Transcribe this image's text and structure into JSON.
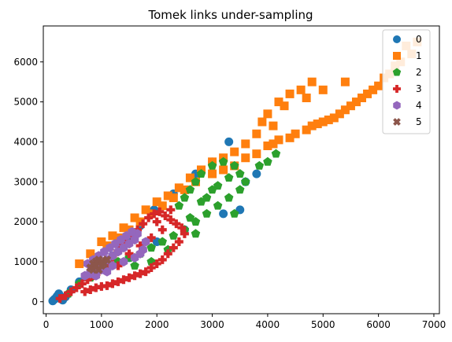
{
  "chart_data": {
    "type": "scatter",
    "title": "Tomek links under-sampling",
    "xlabel": "",
    "ylabel": "",
    "xlim": [
      -50,
      7100
    ],
    "ylim": [
      -300,
      6900
    ],
    "x_ticks": [
      0,
      1000,
      2000,
      3000,
      4000,
      5000,
      6000,
      7000
    ],
    "y_ticks": [
      0,
      1000,
      2000,
      3000,
      4000,
      5000,
      6000
    ],
    "grid": false,
    "legend_position": "top-right",
    "series": [
      {
        "name": "0",
        "color": "#1f77b4",
        "marker": "circle",
        "points": [
          [
            120,
            20
          ],
          [
            150,
            60
          ],
          [
            180,
            100
          ],
          [
            200,
            140
          ],
          [
            230,
            200
          ],
          [
            260,
            80
          ],
          [
            300,
            40
          ],
          [
            350,
            120
          ],
          [
            450,
            300
          ],
          [
            600,
            500
          ],
          [
            800,
            700
          ],
          [
            1000,
            900
          ],
          [
            1200,
            1150
          ],
          [
            1450,
            1600
          ],
          [
            1700,
            1900
          ],
          [
            1950,
            2300
          ],
          [
            2300,
            2700
          ],
          [
            2700,
            3200
          ],
          [
            3000,
            3500
          ],
          [
            3300,
            4000
          ],
          [
            3600,
            3000
          ],
          [
            3800,
            3200
          ],
          [
            2500,
            1800
          ],
          [
            2000,
            1500
          ],
          [
            1500,
            1100
          ],
          [
            1100,
            800
          ],
          [
            3500,
            2300
          ],
          [
            3200,
            2200
          ]
        ]
      },
      {
        "name": "1",
        "color": "#ff7f0e",
        "marker": "square",
        "points": [
          [
            600,
            950
          ],
          [
            800,
            1200
          ],
          [
            1000,
            1500
          ],
          [
            1200,
            1650
          ],
          [
            1400,
            1850
          ],
          [
            1600,
            2100
          ],
          [
            1800,
            2300
          ],
          [
            2000,
            2500
          ],
          [
            2200,
            2650
          ],
          [
            2400,
            2850
          ],
          [
            2600,
            3100
          ],
          [
            2800,
            3300
          ],
          [
            3000,
            3500
          ],
          [
            3200,
            3600
          ],
          [
            3400,
            3750
          ],
          [
            3600,
            3950
          ],
          [
            3800,
            4200
          ],
          [
            3900,
            4500
          ],
          [
            4000,
            4700
          ],
          [
            4200,
            5000
          ],
          [
            4400,
            5200
          ],
          [
            4600,
            5300
          ],
          [
            4800,
            5500
          ],
          [
            4000,
            3900
          ],
          [
            4200,
            4050
          ],
          [
            4500,
            4200
          ],
          [
            4800,
            4400
          ],
          [
            5000,
            4500
          ],
          [
            5200,
            4600
          ],
          [
            5400,
            4800
          ],
          [
            5600,
            5000
          ],
          [
            5800,
            5200
          ],
          [
            6000,
            5400
          ],
          [
            6200,
            5700
          ],
          [
            6400,
            6000
          ],
          [
            6600,
            6200
          ],
          [
            6700,
            6500
          ],
          [
            6500,
            6400
          ],
          [
            6300,
            5900
          ],
          [
            6100,
            5600
          ],
          [
            5900,
            5300
          ],
          [
            5700,
            5100
          ],
          [
            5500,
            4900
          ],
          [
            5300,
            4700
          ],
          [
            5100,
            4550
          ],
          [
            4900,
            4450
          ],
          [
            4700,
            4300
          ],
          [
            4400,
            4100
          ],
          [
            4100,
            3950
          ],
          [
            3800,
            3700
          ],
          [
            3600,
            3600
          ],
          [
            3400,
            3400
          ],
          [
            3200,
            3300
          ],
          [
            3000,
            3200
          ],
          [
            2700,
            3000
          ],
          [
            2500,
            2800
          ],
          [
            2300,
            2600
          ],
          [
            2100,
            2400
          ],
          [
            1900,
            2200
          ],
          [
            1700,
            2000
          ],
          [
            1500,
            1800
          ],
          [
            1300,
            1600
          ],
          [
            1100,
            1400
          ],
          [
            5000,
            5300
          ],
          [
            5400,
            5500
          ],
          [
            4700,
            5100
          ],
          [
            4300,
            4900
          ],
          [
            4100,
            4400
          ]
        ]
      },
      {
        "name": "2",
        "color": "#2ca02c",
        "marker": "pentagon",
        "points": [
          [
            400,
            200
          ],
          [
            600,
            450
          ],
          [
            800,
            600
          ],
          [
            900,
            800
          ],
          [
            1100,
            900
          ],
          [
            1300,
            1000
          ],
          [
            1500,
            1100
          ],
          [
            1700,
            1200
          ],
          [
            1900,
            1350
          ],
          [
            2100,
            1500
          ],
          [
            2300,
            1650
          ],
          [
            2500,
            1800
          ],
          [
            2700,
            2000
          ],
          [
            2900,
            2200
          ],
          [
            3100,
            2400
          ],
          [
            3300,
            2600
          ],
          [
            3500,
            2800
          ],
          [
            3600,
            3000
          ],
          [
            3500,
            3200
          ],
          [
            3400,
            3400
          ],
          [
            3200,
            3500
          ],
          [
            3000,
            3400
          ],
          [
            2800,
            3200
          ],
          [
            2700,
            3000
          ],
          [
            2600,
            2800
          ],
          [
            2500,
            2600
          ],
          [
            2400,
            2400
          ],
          [
            2600,
            2100
          ],
          [
            2900,
            2600
          ],
          [
            3100,
            2900
          ],
          [
            3300,
            3100
          ],
          [
            3000,
            2800
          ],
          [
            2800,
            2500
          ],
          [
            2200,
            1300
          ],
          [
            1900,
            1000
          ],
          [
            1600,
            900
          ],
          [
            4000,
            3500
          ],
          [
            4150,
            3700
          ],
          [
            3850,
            3400
          ],
          [
            2700,
            1700
          ],
          [
            3400,
            2200
          ]
        ]
      },
      {
        "name": "3",
        "color": "#d62728",
        "marker": "plus",
        "points": [
          [
            250,
            80
          ],
          [
            350,
            150
          ],
          [
            450,
            250
          ],
          [
            550,
            350
          ],
          [
            650,
            450
          ],
          [
            750,
            550
          ],
          [
            850,
            650
          ],
          [
            950,
            750
          ],
          [
            1050,
            900
          ],
          [
            1150,
            1050
          ],
          [
            1250,
            1200
          ],
          [
            1350,
            1350
          ],
          [
            1450,
            1500
          ],
          [
            1550,
            1650
          ],
          [
            1650,
            1800
          ],
          [
            1750,
            1950
          ],
          [
            1850,
            2100
          ],
          [
            1950,
            2200
          ],
          [
            2050,
            2250
          ],
          [
            2150,
            2150
          ],
          [
            2250,
            2050
          ],
          [
            2350,
            1950
          ],
          [
            2450,
            1850
          ],
          [
            2500,
            1700
          ],
          [
            2400,
            1500
          ],
          [
            2300,
            1350
          ],
          [
            2200,
            1200
          ],
          [
            2100,
            1050
          ],
          [
            2000,
            950
          ],
          [
            1900,
            850
          ],
          [
            1800,
            750
          ],
          [
            1700,
            700
          ],
          [
            1600,
            650
          ],
          [
            1500,
            600
          ],
          [
            1400,
            550
          ],
          [
            1300,
            500
          ],
          [
            1200,
            450
          ],
          [
            1100,
            400
          ],
          [
            1000,
            380
          ],
          [
            900,
            350
          ],
          [
            800,
            300
          ],
          [
            700,
            250
          ],
          [
            1700,
            1400
          ],
          [
            1900,
            1600
          ],
          [
            2100,
            1800
          ],
          [
            1500,
            1200
          ],
          [
            1300,
            900
          ],
          [
            2000,
            2000
          ],
          [
            2250,
            2300
          ]
        ]
      },
      {
        "name": "4",
        "color": "#9467bd",
        "marker": "hexagon",
        "points": [
          [
            700,
            650
          ],
          [
            800,
            750
          ],
          [
            900,
            850
          ],
          [
            1000,
            950
          ],
          [
            1100,
            1050
          ],
          [
            1200,
            1150
          ],
          [
            1300,
            1250
          ],
          [
            1400,
            1350
          ],
          [
            1500,
            1450
          ],
          [
            1600,
            1550
          ],
          [
            1650,
            1700
          ],
          [
            1550,
            1750
          ],
          [
            1450,
            1650
          ],
          [
            1350,
            1550
          ],
          [
            1250,
            1450
          ],
          [
            1150,
            1350
          ],
          [
            1050,
            1250
          ],
          [
            950,
            1150
          ],
          [
            850,
            1050
          ],
          [
            750,
            950
          ],
          [
            800,
            700
          ],
          [
            1000,
            800
          ],
          [
            1200,
            900
          ],
          [
            1400,
            1000
          ],
          [
            1600,
            1100
          ],
          [
            1750,
            1300
          ],
          [
            1800,
            1500
          ],
          [
            1700,
            1200
          ],
          [
            900,
            650
          ],
          [
            1100,
            750
          ]
        ]
      },
      {
        "name": "5",
        "color": "#8c564b",
        "marker": "x",
        "points": [
          [
            800,
            850
          ],
          [
            850,
            950
          ],
          [
            900,
            1000
          ],
          [
            950,
            1050
          ],
          [
            1000,
            1000
          ],
          [
            1050,
            950
          ],
          [
            900,
            900
          ],
          [
            950,
            800
          ],
          [
            850,
            800
          ],
          [
            1000,
            900
          ],
          [
            1100,
            1050
          ]
        ]
      }
    ]
  }
}
